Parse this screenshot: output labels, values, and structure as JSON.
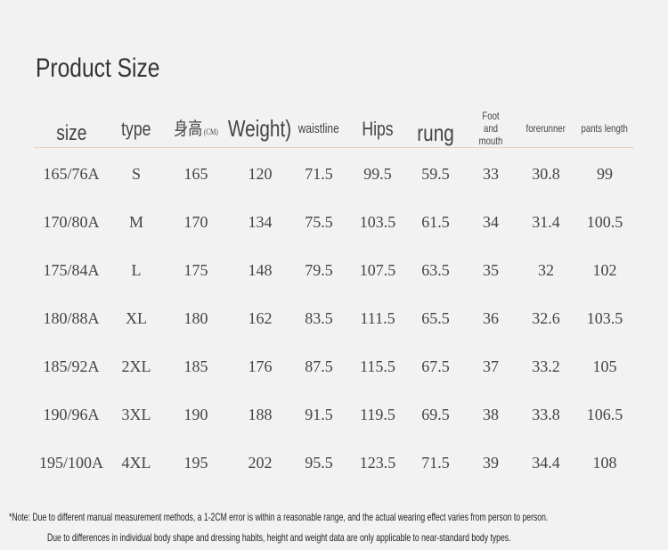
{
  "title": "Product Size",
  "headers": [
    {
      "label": "size",
      "size": 24
    },
    {
      "label": "type",
      "size": 22
    },
    {
      "label": "身高",
      "sub": "(CM)",
      "size": 20
    },
    {
      "label": "Weight)",
      "size": 26
    },
    {
      "label": "waistline",
      "size": 15
    },
    {
      "label": "Hips",
      "size": 22
    },
    {
      "label": "rung",
      "size": 26
    },
    {
      "label": "Foot and mouth",
      "size": 12
    },
    {
      "label": "forerunner",
      "size": 12
    },
    {
      "label": "pants length",
      "size": 12
    }
  ],
  "rows": [
    [
      "165/76A",
      "S",
      "165",
      "120",
      "71.5",
      "99.5",
      "59.5",
      "33",
      "30.8",
      "99"
    ],
    [
      "170/80A",
      "M",
      "170",
      "134",
      "75.5",
      "103.5",
      "61.5",
      "34",
      "31.4",
      "100.5"
    ],
    [
      "175/84A",
      "L",
      "175",
      "148",
      "79.5",
      "107.5",
      "63.5",
      "35",
      "32",
      "102"
    ],
    [
      "180/88A",
      "XL",
      "180",
      "162",
      "83.5",
      "111.5",
      "65.5",
      "36",
      "32.6",
      "103.5"
    ],
    [
      "185/92A",
      "2XL",
      "185",
      "176",
      "87.5",
      "115.5",
      "67.5",
      "37",
      "33.2",
      "105"
    ],
    [
      "190/96A",
      "3XL",
      "190",
      "188",
      "91.5",
      "119.5",
      "69.5",
      "38",
      "33.8",
      "106.5"
    ],
    [
      "195/100A",
      "4XL",
      "195",
      "202",
      "95.5",
      "123.5",
      "71.5",
      "39",
      "34.4",
      "108"
    ]
  ],
  "notes": [
    "*Note: Due to different manual measurement methods, a 1-2CM error is within a reasonable range, and the actual wearing effect varies from person to person.",
    "Due to differences in individual body shape and dressing habits, height and weight data are only applicable to near-standard body types."
  ],
  "colors": {
    "background": "#f2f2f2",
    "rule": "#e6d2c0",
    "text": "#444444"
  }
}
